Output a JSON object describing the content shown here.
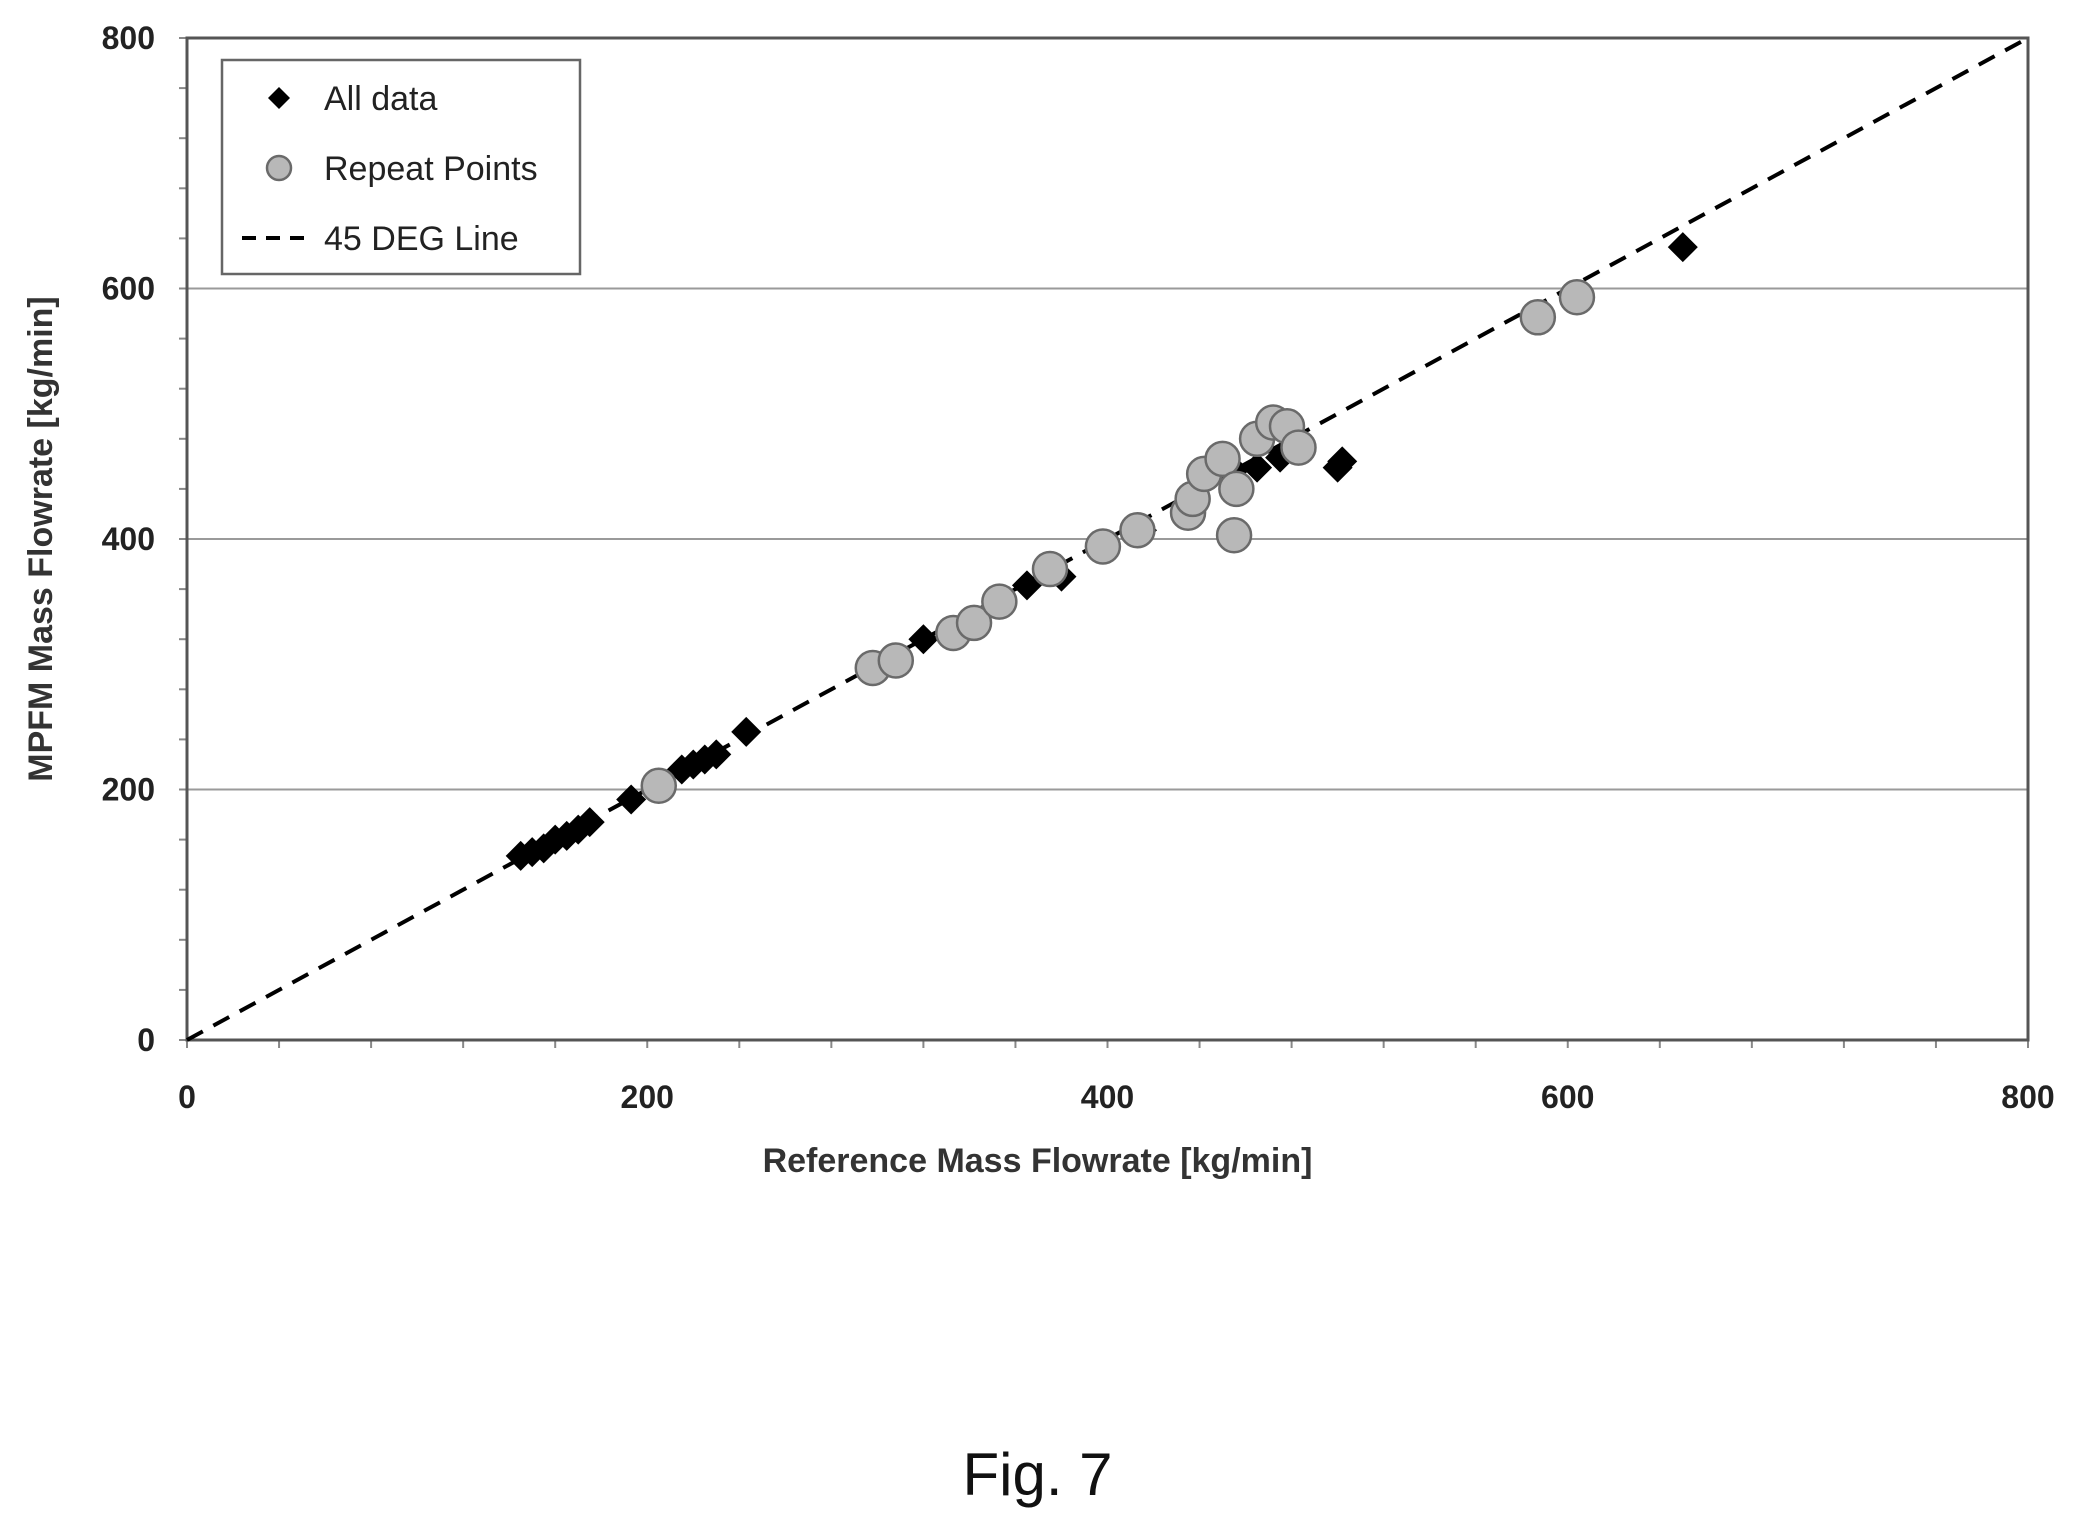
{
  "chart_data": {
    "type": "scatter",
    "xlabel": "Reference Mass Flowrate [kg/min]",
    "ylabel": "MPFM Mass Flowrate [kg/min]",
    "xlim": [
      0,
      800
    ],
    "ylim": [
      0,
      800
    ],
    "xticks": [
      "0",
      "200",
      "400",
      "600",
      "800"
    ],
    "yticks": [
      "0",
      "200",
      "400",
      "600",
      "800"
    ],
    "grid": "horizontal",
    "legend_position": "top-left",
    "series": [
      {
        "name": "All data",
        "marker": "diamond",
        "color": "#000000",
        "points": [
          [
            145,
            147
          ],
          [
            150,
            150
          ],
          [
            155,
            153
          ],
          [
            160,
            160
          ],
          [
            165,
            163
          ],
          [
            170,
            168
          ],
          [
            175,
            174
          ],
          [
            193,
            192
          ],
          [
            215,
            216
          ],
          [
            220,
            220
          ],
          [
            225,
            224
          ],
          [
            230,
            228
          ],
          [
            243,
            246
          ],
          [
            320,
            320
          ],
          [
            365,
            363
          ],
          [
            380,
            370
          ],
          [
            415,
            407
          ],
          [
            455,
            455
          ],
          [
            465,
            457
          ],
          [
            475,
            465
          ],
          [
            500,
            457
          ],
          [
            502,
            462
          ],
          [
            650,
            633
          ]
        ]
      },
      {
        "name": "Repeat Points",
        "marker": "circle",
        "color": "#b8b8b8",
        "points": [
          [
            205,
            203
          ],
          [
            298,
            297
          ],
          [
            308,
            303
          ],
          [
            333,
            325
          ],
          [
            342,
            333
          ],
          [
            353,
            350
          ],
          [
            375,
            376
          ],
          [
            398,
            394
          ],
          [
            413,
            407
          ],
          [
            435,
            421
          ],
          [
            437,
            432
          ],
          [
            442,
            452
          ],
          [
            450,
            464
          ],
          [
            456,
            440
          ],
          [
            455,
            403
          ],
          [
            465,
            480
          ],
          [
            472,
            493
          ],
          [
            478,
            490
          ],
          [
            483,
            473
          ],
          [
            587,
            577
          ],
          [
            604,
            593
          ]
        ]
      },
      {
        "name": "45 DEG Line",
        "type": "line",
        "style": "dashed",
        "color": "#000000",
        "x": [
          0,
          800
        ],
        "y": [
          0,
          800
        ]
      }
    ]
  },
  "caption": "Fig. 7"
}
